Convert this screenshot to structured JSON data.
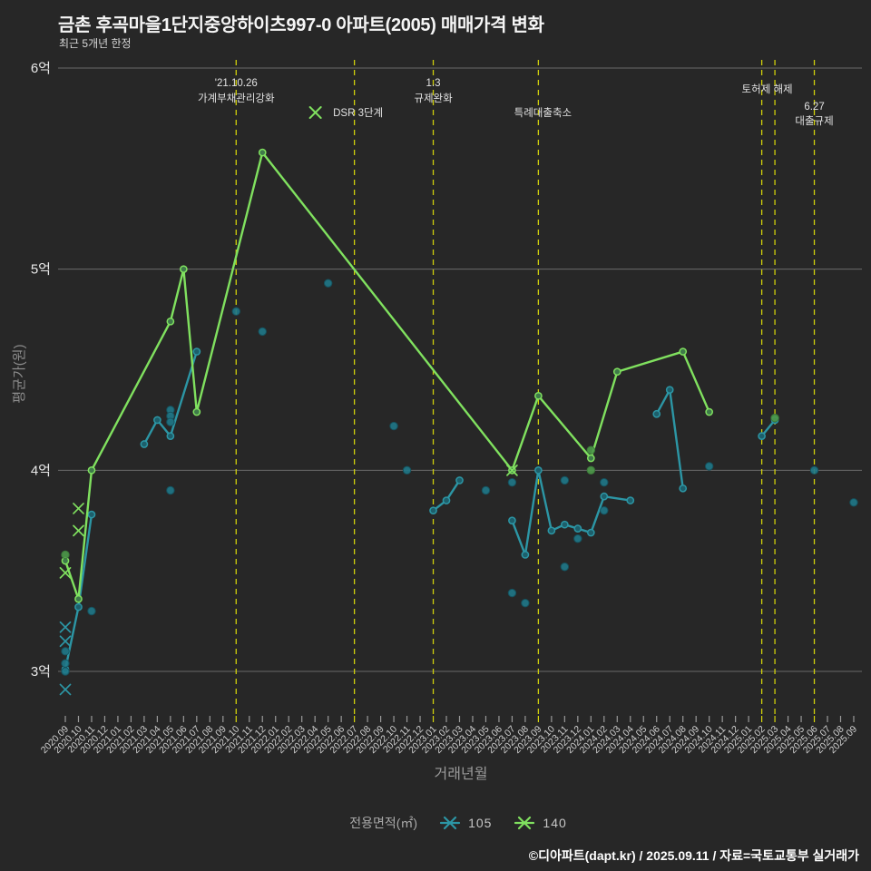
{
  "header": {
    "title": "금촌 후곡마을1단지중앙하이츠997-0 아파트(2005) 매매가격 변화",
    "subtitle": "최근 5개년 한정"
  },
  "footer": {
    "credit": "©디아파트(dapt.kr) / 2025.09.11 / 자료=국토교통부 실거래가"
  },
  "legend": {
    "label": "전용면적(㎡)",
    "items": [
      {
        "name": "105",
        "color": "#2c96a5",
        "marker": "asterisk-icon"
      },
      {
        "name": "140",
        "color": "#80e15f",
        "marker": "asterisk-icon"
      }
    ]
  },
  "chart_data": {
    "type": "line",
    "title": "금촌 후곡마을1단지중앙하이츠997-0 아파트(2005) 매매가격 변화",
    "xlabel": "거래년월",
    "ylabel": "평균가(원)",
    "unit": "억원",
    "ylim": [
      2.8,
      6.05
    ],
    "grid": "horizontal",
    "legend_position": "bottom",
    "y_gridlines": [
      {
        "label": "3억",
        "value": 3
      },
      {
        "label": "4억",
        "value": 4
      },
      {
        "label": "5억",
        "value": 5
      },
      {
        "label": "6억",
        "value": 6
      }
    ],
    "x_categories": [
      "2020.09",
      "2020.10",
      "2020.11",
      "2020.12",
      "2021.01",
      "2021.02",
      "2021.03",
      "2021.04",
      "2021.05",
      "2021.06",
      "2021.07",
      "2021.08",
      "2021.09",
      "2021.10",
      "2021.11",
      "2021.12",
      "2022.01",
      "2022.02",
      "2022.03",
      "2022.04",
      "2022.05",
      "2022.06",
      "2022.07",
      "2022.08",
      "2022.09",
      "2022.10",
      "2022.11",
      "2022.12",
      "2023.01",
      "2023.02",
      "2023.03",
      "2023.04",
      "2023.05",
      "2023.06",
      "2023.07",
      "2023.08",
      "2023.09",
      "2023.10",
      "2023.11",
      "2023.12",
      "2024.01",
      "2024.02",
      "2024.03",
      "2024.04",
      "2024.05",
      "2024.06",
      "2024.07",
      "2024.08",
      "2024.09",
      "2024.10",
      "2024.11",
      "2024.12",
      "2025.01",
      "2025.02",
      "2025.03",
      "2025.04",
      "2025.05",
      "2025.06",
      "2025.07",
      "2025.08",
      "2025.09"
    ],
    "series": [
      {
        "name": "105",
        "color": "#2c96a5",
        "vertex_fill": "#1d5f6b",
        "dot_fill": "#20798a",
        "dot_stroke": "#15525e",
        "segments": [
          [
            [
              "2020.09",
              3.01
            ],
            [
              "2020.10",
              3.32
            ],
            [
              "2020.11",
              3.78
            ]
          ],
          [
            [
              "2021.03",
              4.13
            ],
            [
              "2021.04",
              4.25
            ],
            [
              "2021.05",
              4.17
            ],
            [
              "2021.07",
              4.59
            ]
          ],
          [
            [
              "2023.01",
              3.8
            ],
            [
              "2023.02",
              3.85
            ],
            [
              "2023.03",
              3.95
            ]
          ],
          [
            [
              "2023.07",
              3.75
            ],
            [
              "2023.08",
              3.58
            ],
            [
              "2023.09",
              4.0
            ],
            [
              "2023.10",
              3.7
            ],
            [
              "2023.11",
              3.73
            ],
            [
              "2023.12",
              3.71
            ],
            [
              "2024.01",
              3.69
            ],
            [
              "2024.02",
              3.87
            ],
            [
              "2024.04",
              3.85
            ]
          ],
          [
            [
              "2024.06",
              4.28
            ],
            [
              "2024.07",
              4.4
            ],
            [
              "2024.08",
              3.91
            ]
          ],
          [
            [
              "2025.02",
              4.17
            ],
            [
              "2025.03",
              4.25
            ]
          ]
        ]
      },
      {
        "name": "140",
        "color": "#80e15f",
        "vertex_fill": "#3f7a4a",
        "dot_fill": "#4e9a4a",
        "dot_stroke": "#3c7a3a",
        "segments": [
          [
            [
              "2020.09",
              3.55
            ],
            [
              "2020.10",
              3.36
            ],
            [
              "2020.11",
              4.0
            ],
            [
              "2021.05",
              4.74
            ],
            [
              "2021.06",
              5.0
            ],
            [
              "2021.07",
              4.29
            ],
            [
              "2021.12",
              5.58
            ],
            [
              "2023.07",
              4.0
            ],
            [
              "2023.09",
              4.37
            ],
            [
              "2024.01",
              4.06
            ],
            [
              "2024.03",
              4.49
            ],
            [
              "2024.08",
              4.59
            ],
            [
              "2024.10",
              4.29
            ]
          ]
        ]
      }
    ],
    "scatter": [
      {
        "series": "105",
        "points": [
          [
            "2020.09",
            3.1
          ],
          [
            "2020.09",
            3.04
          ],
          [
            "2020.09",
            3.0
          ],
          [
            "2020.11",
            3.3
          ],
          [
            "2021.05",
            4.3
          ],
          [
            "2021.05",
            4.27
          ],
          [
            "2021.05",
            4.24
          ],
          [
            "2021.05",
            3.9
          ],
          [
            "2021.10",
            4.79
          ],
          [
            "2021.12",
            4.69
          ],
          [
            "2022.05",
            4.93
          ],
          [
            "2022.10",
            4.22
          ],
          [
            "2022.11",
            4.0
          ],
          [
            "2023.05",
            3.9
          ],
          [
            "2023.07",
            3.94
          ],
          [
            "2023.07",
            3.39
          ],
          [
            "2023.08",
            3.34
          ],
          [
            "2023.11",
            3.95
          ],
          [
            "2023.11",
            3.52
          ],
          [
            "2023.12",
            3.66
          ],
          [
            "2024.02",
            3.94
          ],
          [
            "2024.02",
            3.8
          ],
          [
            "2024.10",
            4.02
          ],
          [
            "2025.06",
            4.0
          ],
          [
            "2025.09",
            3.84
          ]
        ]
      },
      {
        "series": "140",
        "points": [
          [
            "2020.09",
            3.58
          ],
          [
            "2024.01",
            4.1
          ],
          [
            "2024.01",
            4.0
          ],
          [
            "2025.03",
            4.26
          ]
        ]
      }
    ],
    "x_markers": [
      {
        "series": "105",
        "points": [
          [
            "2020.09",
            3.22
          ],
          [
            "2020.09",
            3.15
          ],
          [
            "2020.09",
            2.91
          ]
        ]
      },
      {
        "series": "140",
        "points": [
          [
            "2020.09",
            3.49
          ],
          [
            "2020.10",
            3.81
          ],
          [
            "2020.10",
            3.7
          ],
          [
            "2023.07",
            4.0
          ]
        ]
      }
    ],
    "events": [
      {
        "months": [
          "2021.10"
        ],
        "texts": [
          {
            "t": "'21.10.26",
            "y": 95
          },
          {
            "t": "가계부채관리강화",
            "y": 112
          }
        ]
      },
      {
        "months": [
          "2022.07"
        ],
        "marker": {
          "dx": -43,
          "y": 124
        },
        "texts": [
          {
            "t": "DSR 3단계",
            "y": 128,
            "dx": 4
          }
        ]
      },
      {
        "months": [
          "2023.01"
        ],
        "texts": [
          {
            "t": "1.3",
            "y": 95
          },
          {
            "t": "규제완화",
            "y": 112
          }
        ]
      },
      {
        "months": [
          "2023.09"
        ],
        "texts": [
          {
            "t": "특례대출축소",
            "y": 128,
            "dx": 5
          }
        ]
      },
      {
        "months": [
          "2025.02",
          "2025.03"
        ],
        "texts": [
          {
            "t": "토허제 해제",
            "y": 102,
            "dx": 6
          }
        ]
      },
      {
        "months": [
          "2025.06"
        ],
        "texts": [
          {
            "t": "6.27",
            "y": 121
          },
          {
            "t": "대출규제",
            "y": 137
          }
        ]
      }
    ]
  }
}
